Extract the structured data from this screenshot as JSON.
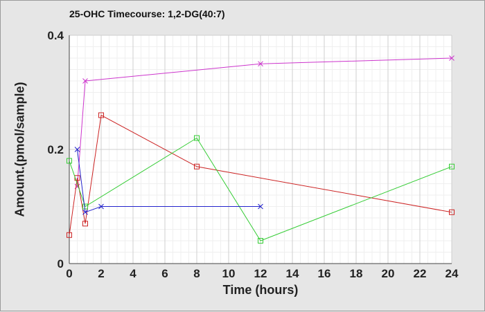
{
  "chart_data": {
    "type": "line",
    "title": "25-OHC Timecourse: 1,2-DG(40:7)",
    "xlabel": "Time (hours)",
    "ylabel": "Amount.(pmol/sample)",
    "xlim": [
      0,
      24
    ],
    "ylim": [
      0,
      0.4
    ],
    "x_ticks": [
      0,
      2,
      4,
      6,
      8,
      10,
      12,
      14,
      16,
      18,
      20,
      22,
      24
    ],
    "x_tick_labels": [
      "0",
      "2",
      "4",
      "6",
      "8",
      "10",
      "12",
      "14",
      "16",
      "18",
      "20",
      "22",
      "24"
    ],
    "y_ticks": [
      0,
      0.2,
      0.4
    ],
    "y_tick_labels": [
      "0",
      "0.2",
      "0.4"
    ],
    "grid": true,
    "legend": "none",
    "series": [
      {
        "color": "#cc33cc",
        "marker": "x",
        "x": [
          0.5,
          1,
          12,
          24
        ],
        "y": [
          0.135,
          0.32,
          0.35,
          0.36
        ]
      },
      {
        "color": "#cc2222",
        "marker": "square",
        "x": [
          0,
          0.5,
          1,
          2,
          8,
          24
        ],
        "y": [
          0.05,
          0.15,
          0.07,
          0.26,
          0.17,
          0.09
        ]
      },
      {
        "color": "#33cc33",
        "marker": "square",
        "x": [
          0,
          1,
          8,
          12,
          24
        ],
        "y": [
          0.18,
          0.1,
          0.22,
          0.04,
          0.17
        ]
      },
      {
        "color": "#2222cc",
        "marker": "x",
        "x": [
          0.5,
          1,
          2,
          12
        ],
        "y": [
          0.2,
          0.09,
          0.1,
          0.1
        ]
      }
    ]
  }
}
